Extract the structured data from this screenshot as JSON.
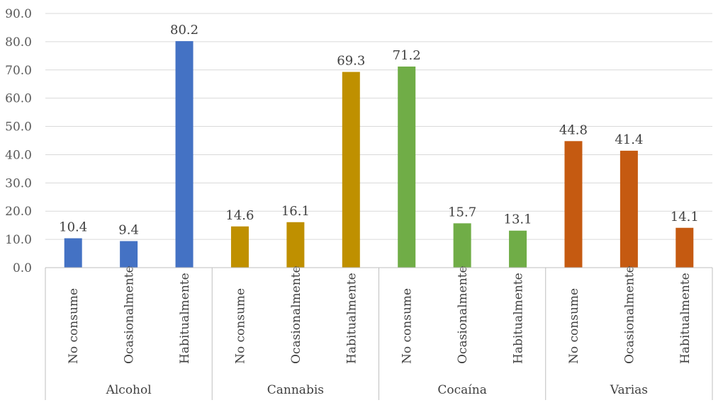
{
  "chart_data": {
    "type": "bar",
    "title": "",
    "xlabel": "",
    "ylabel": "",
    "ylim": [
      0,
      90
    ],
    "yticks": [
      "0.0",
      "10.0",
      "20.0",
      "30.0",
      "40.0",
      "50.0",
      "60.0",
      "70.0",
      "80.0",
      "90.0"
    ],
    "groups": [
      {
        "name": "Alcohol",
        "color": "#4472C4",
        "categories": [
          "No consume",
          "Ocasionalmente",
          "Habitualmente"
        ],
        "values": [
          10.4,
          9.4,
          80.2
        ],
        "labels": [
          "10.4",
          "9.4",
          "80.2"
        ]
      },
      {
        "name": "Cannabis",
        "color": "#BF9000",
        "categories": [
          "No consume",
          "Ocasionalmente",
          "Habitualmente"
        ],
        "values": [
          14.6,
          16.1,
          69.3
        ],
        "labels": [
          "14.6",
          "16.1",
          "69.3"
        ]
      },
      {
        "name": "Cocaína",
        "color": "#70AD47",
        "categories": [
          "No consume",
          "Ocasionalmente",
          "Habitualmente"
        ],
        "values": [
          71.2,
          15.7,
          13.1
        ],
        "labels": [
          "71.2",
          "15.7",
          "13.1"
        ]
      },
      {
        "name": "Varias",
        "color": "#C55A11",
        "categories": [
          "No consume",
          "Ocasionalmente",
          "Habitualmente"
        ],
        "values": [
          44.8,
          41.4,
          14.1
        ],
        "labels": [
          "44.8",
          "41.4",
          "14.1"
        ]
      }
    ]
  }
}
